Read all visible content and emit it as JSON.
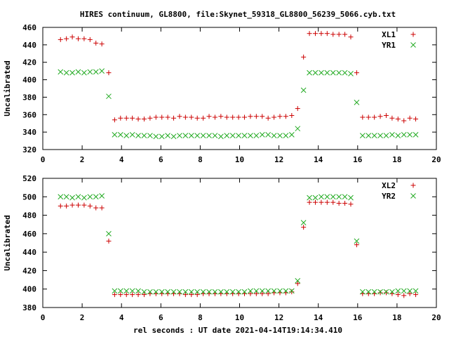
{
  "title": "HIRES continuum, GL8800, file:Skynet_59318_GL8800_56239_5066.cyb.txt",
  "xlabel": "rel seconds : UT date 2021-04-14T19:14:34.410",
  "colors": {
    "red_series": "#cc0000",
    "green_series": "#22aa22",
    "frame": "#000000"
  },
  "chart_data": [
    {
      "type": "scatter",
      "ylabel": "Uncalibrated",
      "xlim": [
        0,
        20
      ],
      "ylim": [
        320,
        460
      ],
      "x_ticks": [
        "0",
        "2",
        "4",
        "6",
        "8",
        "10",
        "12",
        "14",
        "16",
        "18",
        "20"
      ],
      "y_ticks": [
        "320",
        "340",
        "360",
        "380",
        "400",
        "420",
        "440",
        "460"
      ],
      "legend_position": "top-right",
      "series": [
        {
          "name": "XL1",
          "marker": "plus",
          "color": "#cc0000",
          "x": [
            0.9,
            1.2,
            1.5,
            1.8,
            2.1,
            2.4,
            2.7,
            3.0,
            3.35,
            3.65,
            3.95,
            4.25,
            4.55,
            4.85,
            5.15,
            5.45,
            5.75,
            6.05,
            6.35,
            6.65,
            6.95,
            7.25,
            7.55,
            7.85,
            8.15,
            8.45,
            8.75,
            9.05,
            9.35,
            9.65,
            9.95,
            10.25,
            10.55,
            10.85,
            11.15,
            11.45,
            11.75,
            12.05,
            12.35,
            12.65,
            12.95,
            13.25,
            13.55,
            13.85,
            14.15,
            14.45,
            14.75,
            15.05,
            15.35,
            15.65,
            15.95,
            16.25,
            16.55,
            16.85,
            17.15,
            17.45,
            17.75,
            18.05,
            18.35,
            18.65,
            18.95
          ],
          "y": [
            446,
            447,
            449,
            447,
            447,
            446,
            442,
            441,
            408,
            354,
            356,
            356,
            356,
            355,
            355,
            356,
            357,
            357,
            357,
            356,
            358,
            357,
            357,
            356,
            356,
            358,
            357,
            358,
            357,
            357,
            357,
            357,
            358,
            358,
            358,
            356,
            357,
            358,
            358,
            359,
            367,
            426,
            453,
            453,
            453,
            453,
            452,
            452,
            452,
            449,
            408,
            357,
            357,
            357,
            358,
            359,
            356,
            355,
            353,
            356,
            355
          ]
        },
        {
          "name": "YR1",
          "marker": "cross",
          "color": "#22aa22",
          "x": [
            0.9,
            1.2,
            1.5,
            1.8,
            2.1,
            2.4,
            2.7,
            3.0,
            3.35,
            3.65,
            3.95,
            4.25,
            4.55,
            4.85,
            5.15,
            5.45,
            5.75,
            6.05,
            6.35,
            6.65,
            6.95,
            7.25,
            7.55,
            7.85,
            8.15,
            8.45,
            8.75,
            9.05,
            9.35,
            9.65,
            9.95,
            10.25,
            10.55,
            10.85,
            11.15,
            11.45,
            11.75,
            12.05,
            12.35,
            12.65,
            12.95,
            13.25,
            13.55,
            13.85,
            14.15,
            14.45,
            14.75,
            15.05,
            15.35,
            15.65,
            15.95,
            16.25,
            16.55,
            16.85,
            17.15,
            17.45,
            17.75,
            18.05,
            18.35,
            18.65,
            18.95
          ],
          "y": [
            409,
            408,
            408,
            409,
            408,
            409,
            409,
            410,
            381,
            337,
            337,
            336,
            337,
            336,
            336,
            336,
            335,
            335,
            336,
            335,
            336,
            336,
            336,
            336,
            336,
            336,
            336,
            335,
            336,
            336,
            336,
            336,
            336,
            336,
            337,
            337,
            336,
            336,
            336,
            337,
            344,
            388,
            408,
            408,
            408,
            408,
            408,
            408,
            408,
            407,
            374,
            336,
            336,
            336,
            336,
            336,
            337,
            336,
            337,
            337,
            337
          ]
        }
      ]
    },
    {
      "type": "scatter",
      "ylabel": "Uncalibrated",
      "xlim": [
        0,
        20
      ],
      "ylim": [
        380,
        520
      ],
      "x_ticks": [
        "0",
        "2",
        "4",
        "6",
        "8",
        "10",
        "12",
        "14",
        "16",
        "18",
        "20"
      ],
      "y_ticks": [
        "380",
        "400",
        "420",
        "440",
        "460",
        "480",
        "500",
        "520"
      ],
      "legend_position": "top-right",
      "series": [
        {
          "name": "XL2",
          "marker": "plus",
          "color": "#cc0000",
          "x": [
            0.9,
            1.2,
            1.5,
            1.8,
            2.1,
            2.4,
            2.7,
            3.0,
            3.35,
            3.65,
            3.95,
            4.25,
            4.55,
            4.85,
            5.15,
            5.45,
            5.75,
            6.05,
            6.35,
            6.65,
            6.95,
            7.25,
            7.55,
            7.85,
            8.15,
            8.45,
            8.75,
            9.05,
            9.35,
            9.65,
            9.95,
            10.25,
            10.55,
            10.85,
            11.15,
            11.45,
            11.75,
            12.05,
            12.35,
            12.65,
            12.95,
            13.25,
            13.55,
            13.85,
            14.15,
            14.45,
            14.75,
            15.05,
            15.35,
            15.65,
            15.95,
            16.25,
            16.55,
            16.85,
            17.15,
            17.45,
            17.75,
            18.05,
            18.35,
            18.65,
            18.95
          ],
          "y": [
            490,
            490,
            491,
            491,
            491,
            490,
            488,
            488,
            452,
            394,
            394,
            394,
            394,
            394,
            394,
            395,
            395,
            395,
            395,
            395,
            395,
            394,
            394,
            394,
            395,
            395,
            395,
            395,
            395,
            395,
            395,
            395,
            395,
            395,
            395,
            395,
            396,
            396,
            396,
            397,
            406,
            467,
            494,
            494,
            494,
            494,
            494,
            493,
            493,
            492,
            448,
            395,
            395,
            395,
            396,
            396,
            395,
            394,
            393,
            395,
            394
          ]
        },
        {
          "name": "YR2",
          "marker": "cross",
          "color": "#22aa22",
          "x": [
            0.9,
            1.2,
            1.5,
            1.8,
            2.1,
            2.4,
            2.7,
            3.0,
            3.35,
            3.65,
            3.95,
            4.25,
            4.55,
            4.85,
            5.15,
            5.45,
            5.75,
            6.05,
            6.35,
            6.65,
            6.95,
            7.25,
            7.55,
            7.85,
            8.15,
            8.45,
            8.75,
            9.05,
            9.35,
            9.65,
            9.95,
            10.25,
            10.55,
            10.85,
            11.15,
            11.45,
            11.75,
            12.05,
            12.35,
            12.65,
            12.95,
            13.25,
            13.55,
            13.85,
            14.15,
            14.45,
            14.75,
            15.05,
            15.35,
            15.65,
            15.95,
            16.25,
            16.55,
            16.85,
            17.15,
            17.45,
            17.75,
            18.05,
            18.35,
            18.65,
            18.95
          ],
          "y": [
            500,
            500,
            499,
            500,
            499,
            500,
            500,
            501,
            460,
            398,
            398,
            398,
            398,
            398,
            397,
            397,
            397,
            397,
            397,
            397,
            397,
            397,
            397,
            397,
            397,
            397,
            397,
            397,
            397,
            397,
            397,
            397,
            398,
            398,
            398,
            398,
            398,
            398,
            398,
            398,
            409,
            472,
            499,
            499,
            500,
            500,
            500,
            500,
            500,
            499,
            452,
            397,
            397,
            397,
            397,
            397,
            397,
            398,
            398,
            398,
            398
          ]
        }
      ]
    }
  ]
}
